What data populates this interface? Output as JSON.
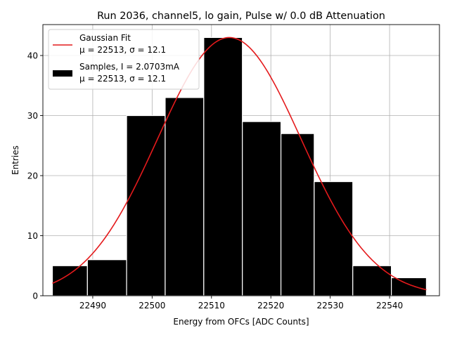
{
  "chart_data": {
    "type": "bar",
    "title": "Run 2036, channel5, lo gain, Pulse w/ 0.0 dB Attenuation",
    "xlabel": "Energy from OFCs [ADC Counts]",
    "ylabel": "Entries",
    "xlim": [
      22481.6,
      22548.4
    ],
    "ylim": [
      0,
      45.15
    ],
    "grid": true,
    "legend_placement": "top-left",
    "x_ticks": [
      "22490",
      "22500",
      "22510",
      "22520",
      "22530",
      "22540"
    ],
    "x_tick_values": [
      22490,
      22500,
      22510,
      22520,
      22530,
      22540
    ],
    "y_ticks": [
      "0",
      "10",
      "20",
      "30",
      "40"
    ],
    "y_tick_values": [
      0,
      10,
      20,
      30,
      40
    ],
    "bins": {
      "edges": [
        22483.2,
        22489.1,
        22495.7,
        22502.2,
        22508.7,
        22515.2,
        22521.7,
        22527.3,
        22533.8,
        22540.3,
        22546.2
      ],
      "values": [
        5,
        6,
        30,
        33,
        43,
        29,
        27,
        19,
        5,
        3
      ],
      "color": "#000000",
      "edge_color": "#ffffff"
    },
    "fit": {
      "type": "gaussian",
      "mu": 22513,
      "sigma": 12.1,
      "amplitude": 43,
      "x_range": [
        22483.2,
        22546.2
      ],
      "color": "#e41a1c"
    },
    "legend": [
      {
        "label": "Gaussian Fit",
        "sublabel": "μ = 22513, σ = 12.1",
        "kind": "line",
        "color": "#e41a1c"
      },
      {
        "label": "Samples, I = 2.0703mA",
        "sublabel": "μ = 22513, σ = 12.1",
        "kind": "patch",
        "color": "#000000"
      }
    ]
  }
}
